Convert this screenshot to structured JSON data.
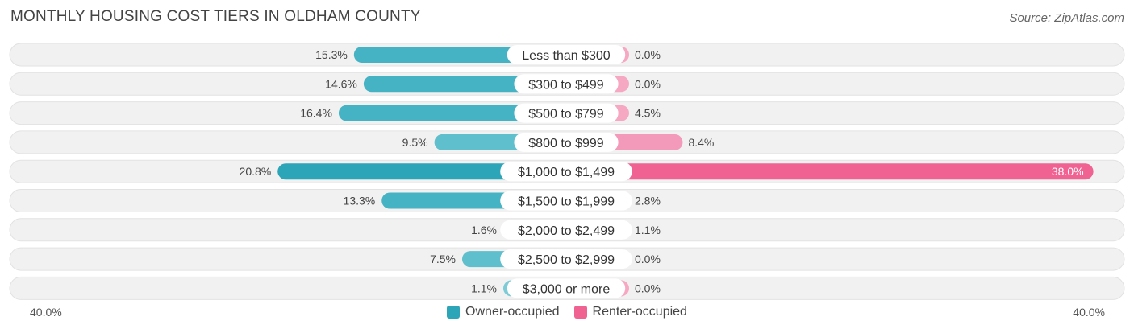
{
  "title": "MONTHLY HOUSING COST TIERS IN OLDHAM COUNTY",
  "source": "Source: ZipAtlas.com",
  "colors": {
    "owner_strong": "#2ba5b7",
    "owner_light": "#7ccbd6",
    "renter_strong": "#f06292",
    "renter_light": "#f6a8c3",
    "row_bg": "#f1f1f1"
  },
  "chart_data": {
    "type": "bar",
    "orientation": "horizontal-diverging",
    "title": "MONTHLY HOUSING COST TIERS IN OLDHAM COUNTY",
    "categories": [
      "Less than $300",
      "$300 to $499",
      "$500 to $799",
      "$800 to $999",
      "$1,000 to $1,499",
      "$1,500 to $1,999",
      "$2,000 to $2,499",
      "$2,500 to $2,999",
      "$3,000 or more"
    ],
    "series": [
      {
        "name": "Owner-occupied",
        "values": [
          15.3,
          14.6,
          16.4,
          9.5,
          20.8,
          13.3,
          1.6,
          7.5,
          1.1
        ],
        "labels": [
          "15.3%",
          "14.6%",
          "16.4%",
          "9.5%",
          "20.8%",
          "13.3%",
          "1.6%",
          "7.5%",
          "1.1%"
        ]
      },
      {
        "name": "Renter-occupied",
        "values": [
          0.0,
          0.0,
          4.5,
          8.4,
          38.0,
          2.8,
          1.1,
          0.0,
          0.0
        ],
        "labels": [
          "0.0%",
          "0.0%",
          "4.5%",
          "8.4%",
          "38.0%",
          "2.8%",
          "1.1%",
          "0.0%",
          "0.0%"
        ]
      }
    ],
    "xlim": [
      -40,
      40
    ],
    "axis_labels": {
      "left": "40.0%",
      "right": "40.0%"
    },
    "legend": {
      "position": "bottom-center",
      "items": [
        "Owner-occupied",
        "Renter-occupied"
      ]
    }
  }
}
